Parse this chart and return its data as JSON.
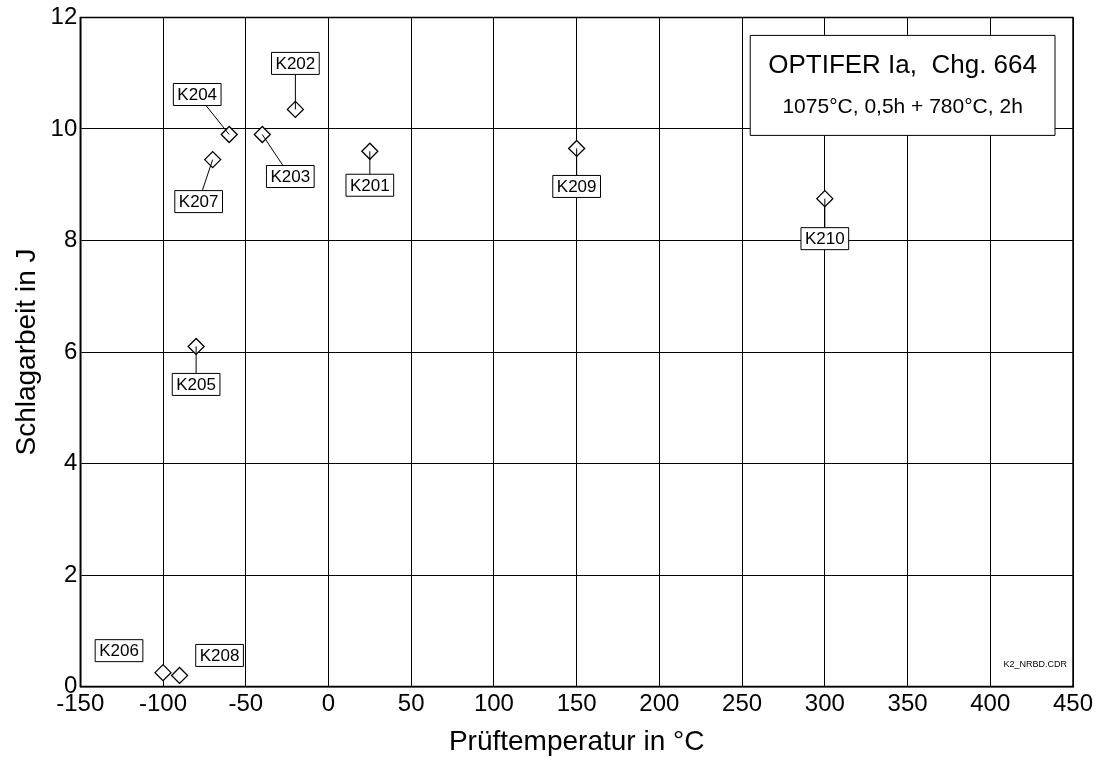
{
  "chart_data": {
    "type": "scatter",
    "title": "OPTIFER Ia,  Chg. 664",
    "subtitle": "1075°C, 0,5h + 780°C, 2h",
    "xlabel": "Prüftemperatur in °C",
    "ylabel": "Schlagarbeit in J",
    "series": [
      {
        "color": "#000000",
        "x": [
          25,
          -20,
          -40,
          -60,
          -80,
          -100,
          -70,
          -90,
          150,
          300
        ],
        "values": [
          9.6,
          10.35,
          9.9,
          9.9,
          6.1,
          0.25,
          9.45,
          0.2,
          9.65,
          8.75
        ]
      }
    ],
    "xlim": [
      -150,
      450
    ],
    "xticks": [
      -150,
      -100,
      -50,
      0,
      50,
      100,
      150,
      200,
      250,
      300,
      350,
      400,
      450
    ],
    "ylim": [
      0,
      12
    ],
    "yticks": [
      0,
      2,
      4,
      6,
      8,
      10,
      12
    ],
    "grid": true,
    "legend": false,
    "marker": "diamond",
    "annotations": [
      {
        "text": "K201",
        "x": 25,
        "y": 9.6
      },
      {
        "text": "K202",
        "x": -20,
        "y": 10.35
      },
      {
        "text": "K203",
        "x": -40,
        "y": 9.9
      },
      {
        "text": "K204",
        "x": -60,
        "y": 9.9
      },
      {
        "text": "K205",
        "x": -80,
        "y": 6.1
      },
      {
        "text": "K206",
        "x": -100,
        "y": 0.25
      },
      {
        "text": "K207",
        "x": -70,
        "y": 9.45
      },
      {
        "text": "K208",
        "x": -90,
        "y": 0.2
      },
      {
        "text": "K209",
        "x": 150,
        "y": 9.65
      },
      {
        "text": "K210",
        "x": 300,
        "y": 8.75
      },
      "K2_NRBD.CDR"
    ]
  }
}
